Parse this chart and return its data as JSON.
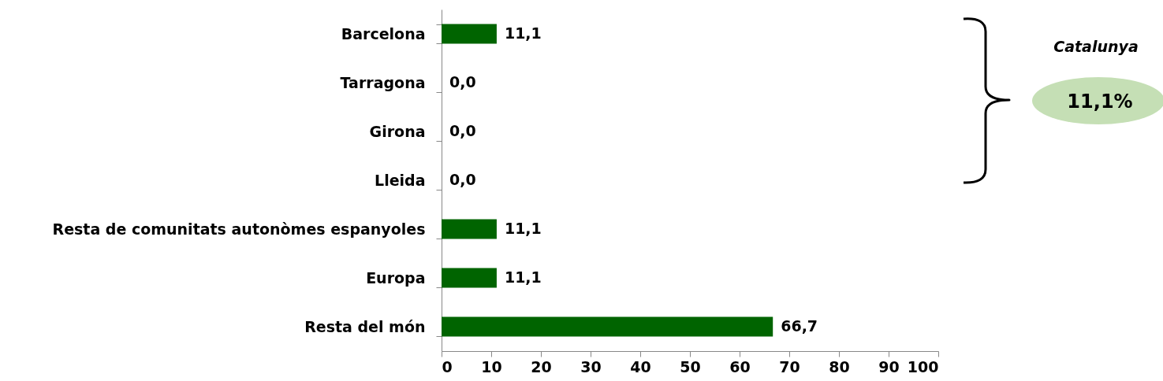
{
  "chart_data": {
    "type": "bar",
    "orientation": "horizontal",
    "categories": [
      "Barcelona",
      "Tarragona",
      "Girona",
      "Lleida",
      "Resta de comunitats autonòmes espanyoles",
      "Europa",
      "Resta del món"
    ],
    "values": [
      11.1,
      0.0,
      0.0,
      0.0,
      11.1,
      11.1,
      66.7
    ],
    "value_labels": [
      "11,1",
      "0,0",
      "0,0",
      "0,0",
      "11,1",
      "11,1",
      "66,7"
    ],
    "color": "#006400",
    "xlim": [
      0,
      100
    ],
    "xticks": [
      0,
      10,
      20,
      30,
      40,
      50,
      60,
      70,
      80,
      90,
      100
    ],
    "grid": false,
    "annotations": [
      "Catalunya",
      "11,1%"
    ]
  }
}
